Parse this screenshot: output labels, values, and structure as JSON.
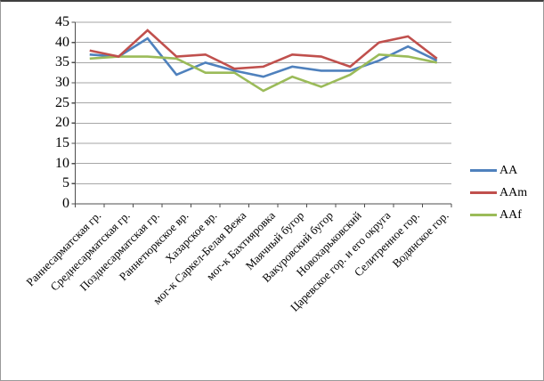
{
  "chart_data": {
    "type": "line",
    "title": "",
    "categories": [
      "Раннесарматская гр.",
      "Среднесарматская гр.",
      "Позднесарматская гр.",
      "Раннетюркское вр.",
      "Хазарское вр.",
      "мог-к Саркел-Белая Вежа",
      "мог-к Бахтияровка",
      "Маячный бугор",
      "Вакуровский бугор",
      "Новохарьковский",
      "Царевское гор. и его округа",
      "Селитренное гор.",
      "Водянское гор."
    ],
    "series": [
      {
        "name": "AA",
        "color": "#4F81BD",
        "values": [
          37,
          36.5,
          41,
          32,
          35,
          33,
          31.5,
          34,
          33,
          33,
          35.5,
          39,
          35.5
        ]
      },
      {
        "name": "AAm",
        "color": "#C0504D",
        "values": [
          38,
          36.5,
          43,
          36.5,
          37,
          33.5,
          34,
          37,
          36.5,
          34,
          40,
          41.5,
          36
        ]
      },
      {
        "name": "AAf",
        "color": "#9BBB59",
        "values": [
          36,
          36.5,
          36.5,
          36,
          32.5,
          32.5,
          28,
          31.5,
          29,
          32,
          37,
          36.5,
          35
        ]
      }
    ],
    "xlabel": "",
    "ylabel": "",
    "ylim": [
      0,
      45
    ],
    "yticks": [
      0,
      5,
      10,
      15,
      20,
      25,
      30,
      35,
      40,
      45
    ],
    "grid": true,
    "legend_position": "right",
    "colors": {
      "gridline": "#A6A6A6",
      "axis": "#4D4D4D",
      "text": "#000000",
      "background": "#FFFFFF"
    }
  }
}
